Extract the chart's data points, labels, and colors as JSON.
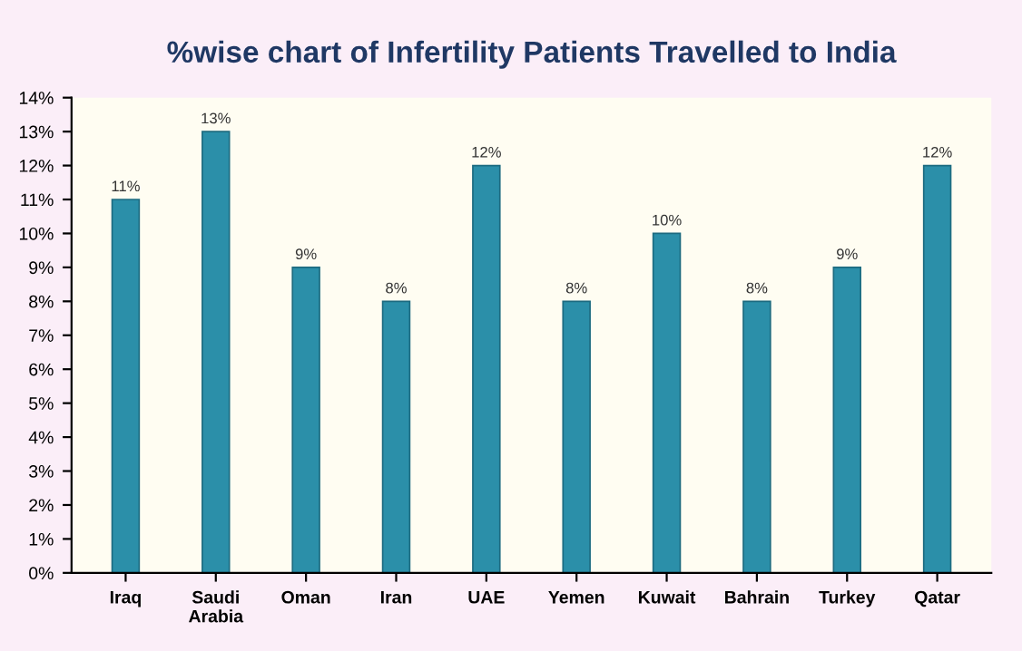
{
  "chart_data": {
    "type": "bar",
    "title": "%wise chart of Infertility Patients Travelled to India",
    "categories": [
      "Iraq",
      "Saudi\nArabia",
      "Oman",
      "Iran",
      "UAE",
      "Yemen",
      "Kuwait",
      "Bahrain",
      "Turkey",
      "Qatar"
    ],
    "values": [
      11,
      13,
      9,
      8,
      12,
      8,
      10,
      8,
      9,
      12
    ],
    "value_labels": [
      "11%",
      "13%",
      "9%",
      "8%",
      "12%",
      "8%",
      "10%",
      "8%",
      "9%",
      "12%"
    ],
    "color": "#2b8fa9",
    "ylim": [
      0,
      14
    ],
    "yticks": [
      {
        "value": 0,
        "label": "0%"
      },
      {
        "value": 1,
        "label": "1%"
      },
      {
        "value": 2,
        "label": "2%"
      },
      {
        "value": 3,
        "label": "3%"
      },
      {
        "value": 4,
        "label": "4%"
      },
      {
        "value": 5,
        "label": "5%"
      },
      {
        "value": 6,
        "label": "6%"
      },
      {
        "value": 7,
        "label": "7%"
      },
      {
        "value": 8,
        "label": "8%"
      },
      {
        "value": 9,
        "label": "9%"
      },
      {
        "value": 10,
        "label": "10%"
      },
      {
        "value": 11,
        "label": "11%"
      },
      {
        "value": 12,
        "label": "12%"
      },
      {
        "value": 13,
        "label": "13%"
      },
      {
        "value": 14,
        "label": "14%"
      }
    ],
    "grid": false
  }
}
